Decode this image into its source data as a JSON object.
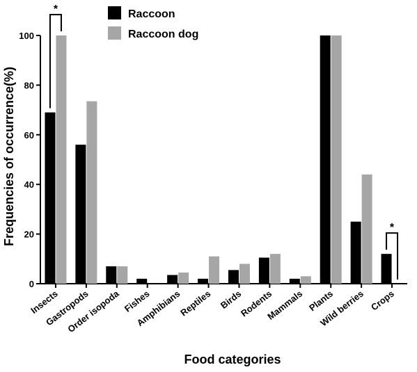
{
  "chart_data": {
    "type": "bar",
    "xlabel": "Food categories",
    "ylabel": "Frequencies of occurrence(%)",
    "ylim": [
      0,
      100
    ],
    "yticks": [
      "0",
      "20",
      "40",
      "60",
      "80",
      "100"
    ],
    "categories": [
      "Insects",
      "Gastropods",
      "Order isopoda",
      "Fishes",
      "Amphibians",
      "Reptiles",
      "Birds",
      "Rodents",
      "Mammals",
      "Plants",
      "Wild berries",
      "Crops"
    ],
    "series": [
      {
        "name": "Raccoon",
        "color": "#000000",
        "values": [
          69,
          56,
          7,
          2,
          3.5,
          2,
          5.5,
          10.5,
          2,
          100,
          25,
          12
        ]
      },
      {
        "name": "Raccoon dog",
        "color": "#a6a6a6",
        "values": [
          100,
          73.5,
          7,
          0,
          4.5,
          11,
          8,
          12,
          3,
          100,
          44,
          0
        ]
      }
    ],
    "legend_position": "top-left",
    "grid": false,
    "annotations": [
      {
        "text": "*",
        "category": "Insects"
      },
      {
        "text": "*",
        "category": "Crops"
      }
    ]
  }
}
